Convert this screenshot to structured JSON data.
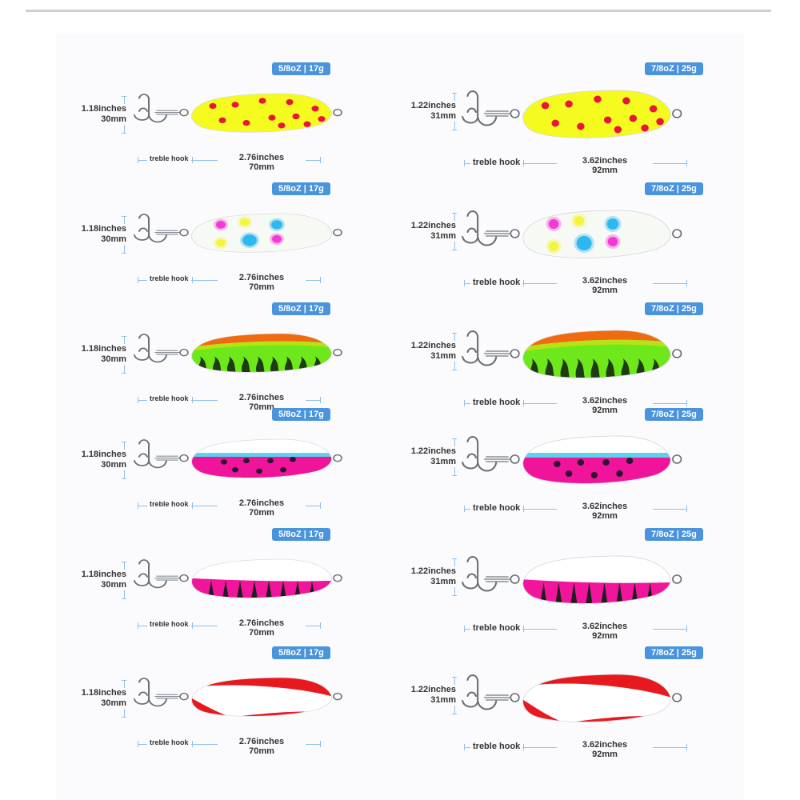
{
  "sizes": {
    "small": {
      "weight": "5/8oZ | 17g",
      "height_in": "1.18inches",
      "height_mm": "30mm",
      "length_in": "2.76inches",
      "length_mm": "70mm",
      "hook_label": "treble hook"
    },
    "large": {
      "weight": "7/8oZ | 25g",
      "height_in": "1.22inches",
      "height_mm": "31mm",
      "length_in": "3.62inches",
      "length_mm": "92mm",
      "hook_label": "treble hook"
    }
  },
  "lures": [
    {
      "pattern": "yellow-red-dots",
      "colors": {
        "body": "#f5fb1e",
        "spot": "#e8143c"
      }
    },
    {
      "pattern": "glow-white-multicolor-dots",
      "colors": {
        "body": "#f7f9f4",
        "pink": "#f43ad6",
        "yellow": "#f2f63c",
        "blue": "#2fb8f0"
      }
    },
    {
      "pattern": "firetiger-orange-green",
      "colors": {
        "top": "#f06b10",
        "body": "#6ee81a",
        "stripe": "#1e3b14"
      }
    },
    {
      "pattern": "white-blue-pink-black-dots",
      "colors": {
        "top": "#ffffff",
        "band": "#5bd3ef",
        "body": "#f0149a",
        "spot": "#2a1430"
      }
    },
    {
      "pattern": "white-pink-black-teeth",
      "colors": {
        "top": "#ffffff",
        "body": "#f0159a",
        "teeth": "#1e1e1e"
      }
    },
    {
      "pattern": "red-white-stripe",
      "colors": {
        "body": "#ffffff",
        "stripe": "#e8181f"
      }
    }
  ]
}
